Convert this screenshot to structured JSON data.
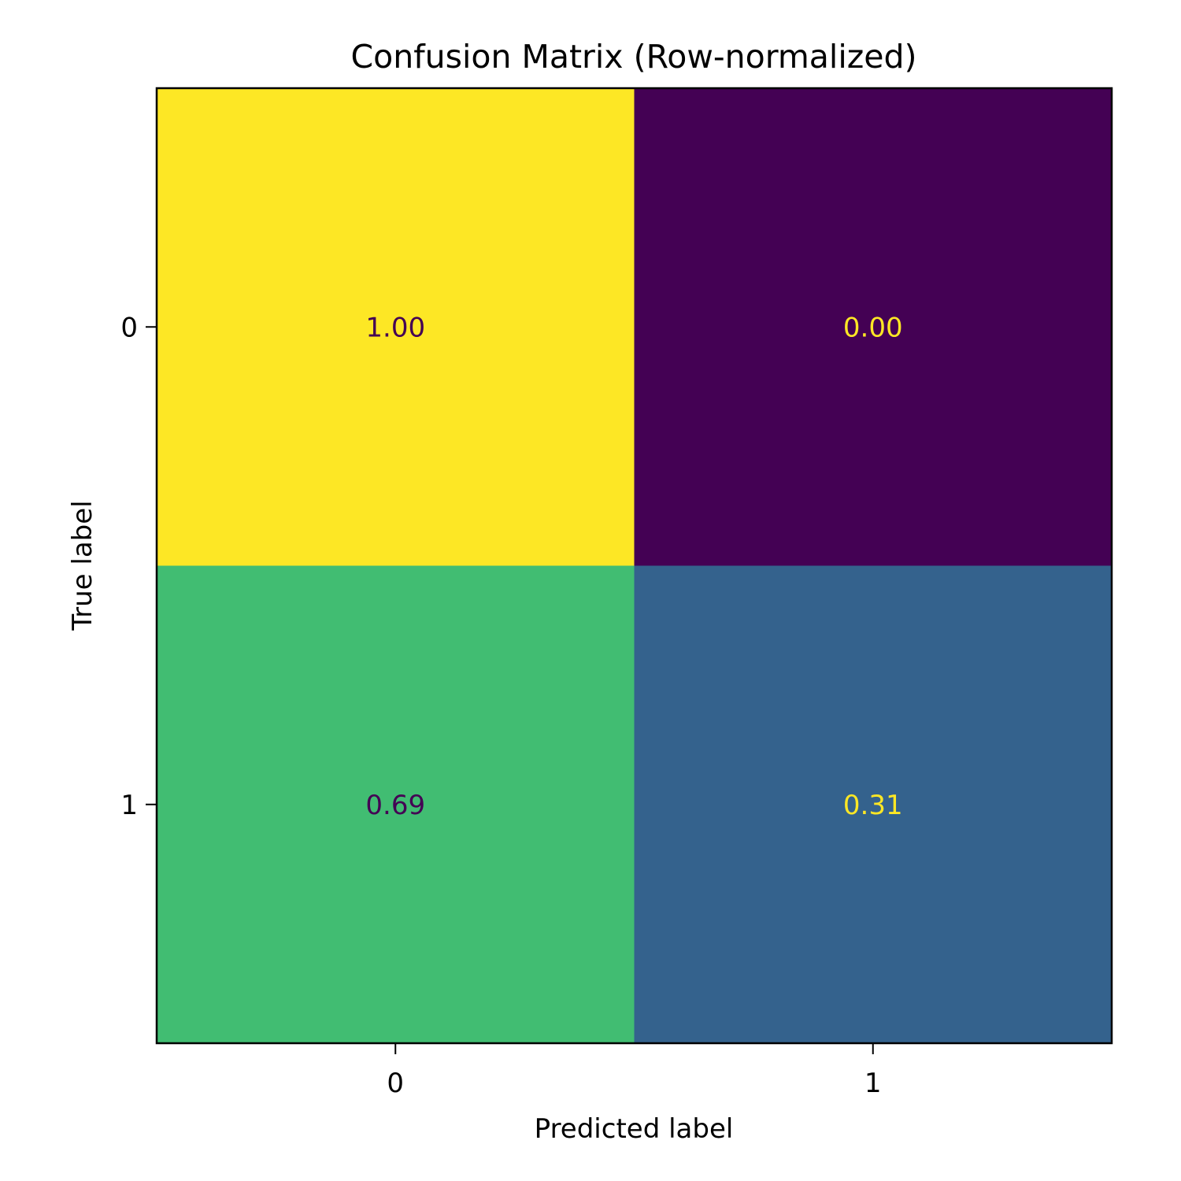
{
  "chart_data": {
    "type": "heatmap",
    "title": "Confusion Matrix (Row-normalized)",
    "xlabel": "Predicted label",
    "ylabel": "True label",
    "x_categories": [
      "0",
      "1"
    ],
    "y_categories": [
      "0",
      "1"
    ],
    "values": [
      [
        1.0,
        0.0
      ],
      [
        0.69,
        0.31
      ]
    ],
    "cell_labels": [
      [
        "1.00",
        "0.00"
      ],
      [
        "0.69",
        "0.31"
      ]
    ],
    "colormap": "viridis",
    "vmin": 0,
    "vmax": 1,
    "colors": {
      "low": "#440154",
      "high": "#fde725",
      "text_on_light": "#440154",
      "text_on_dark": "#fde725"
    }
  }
}
